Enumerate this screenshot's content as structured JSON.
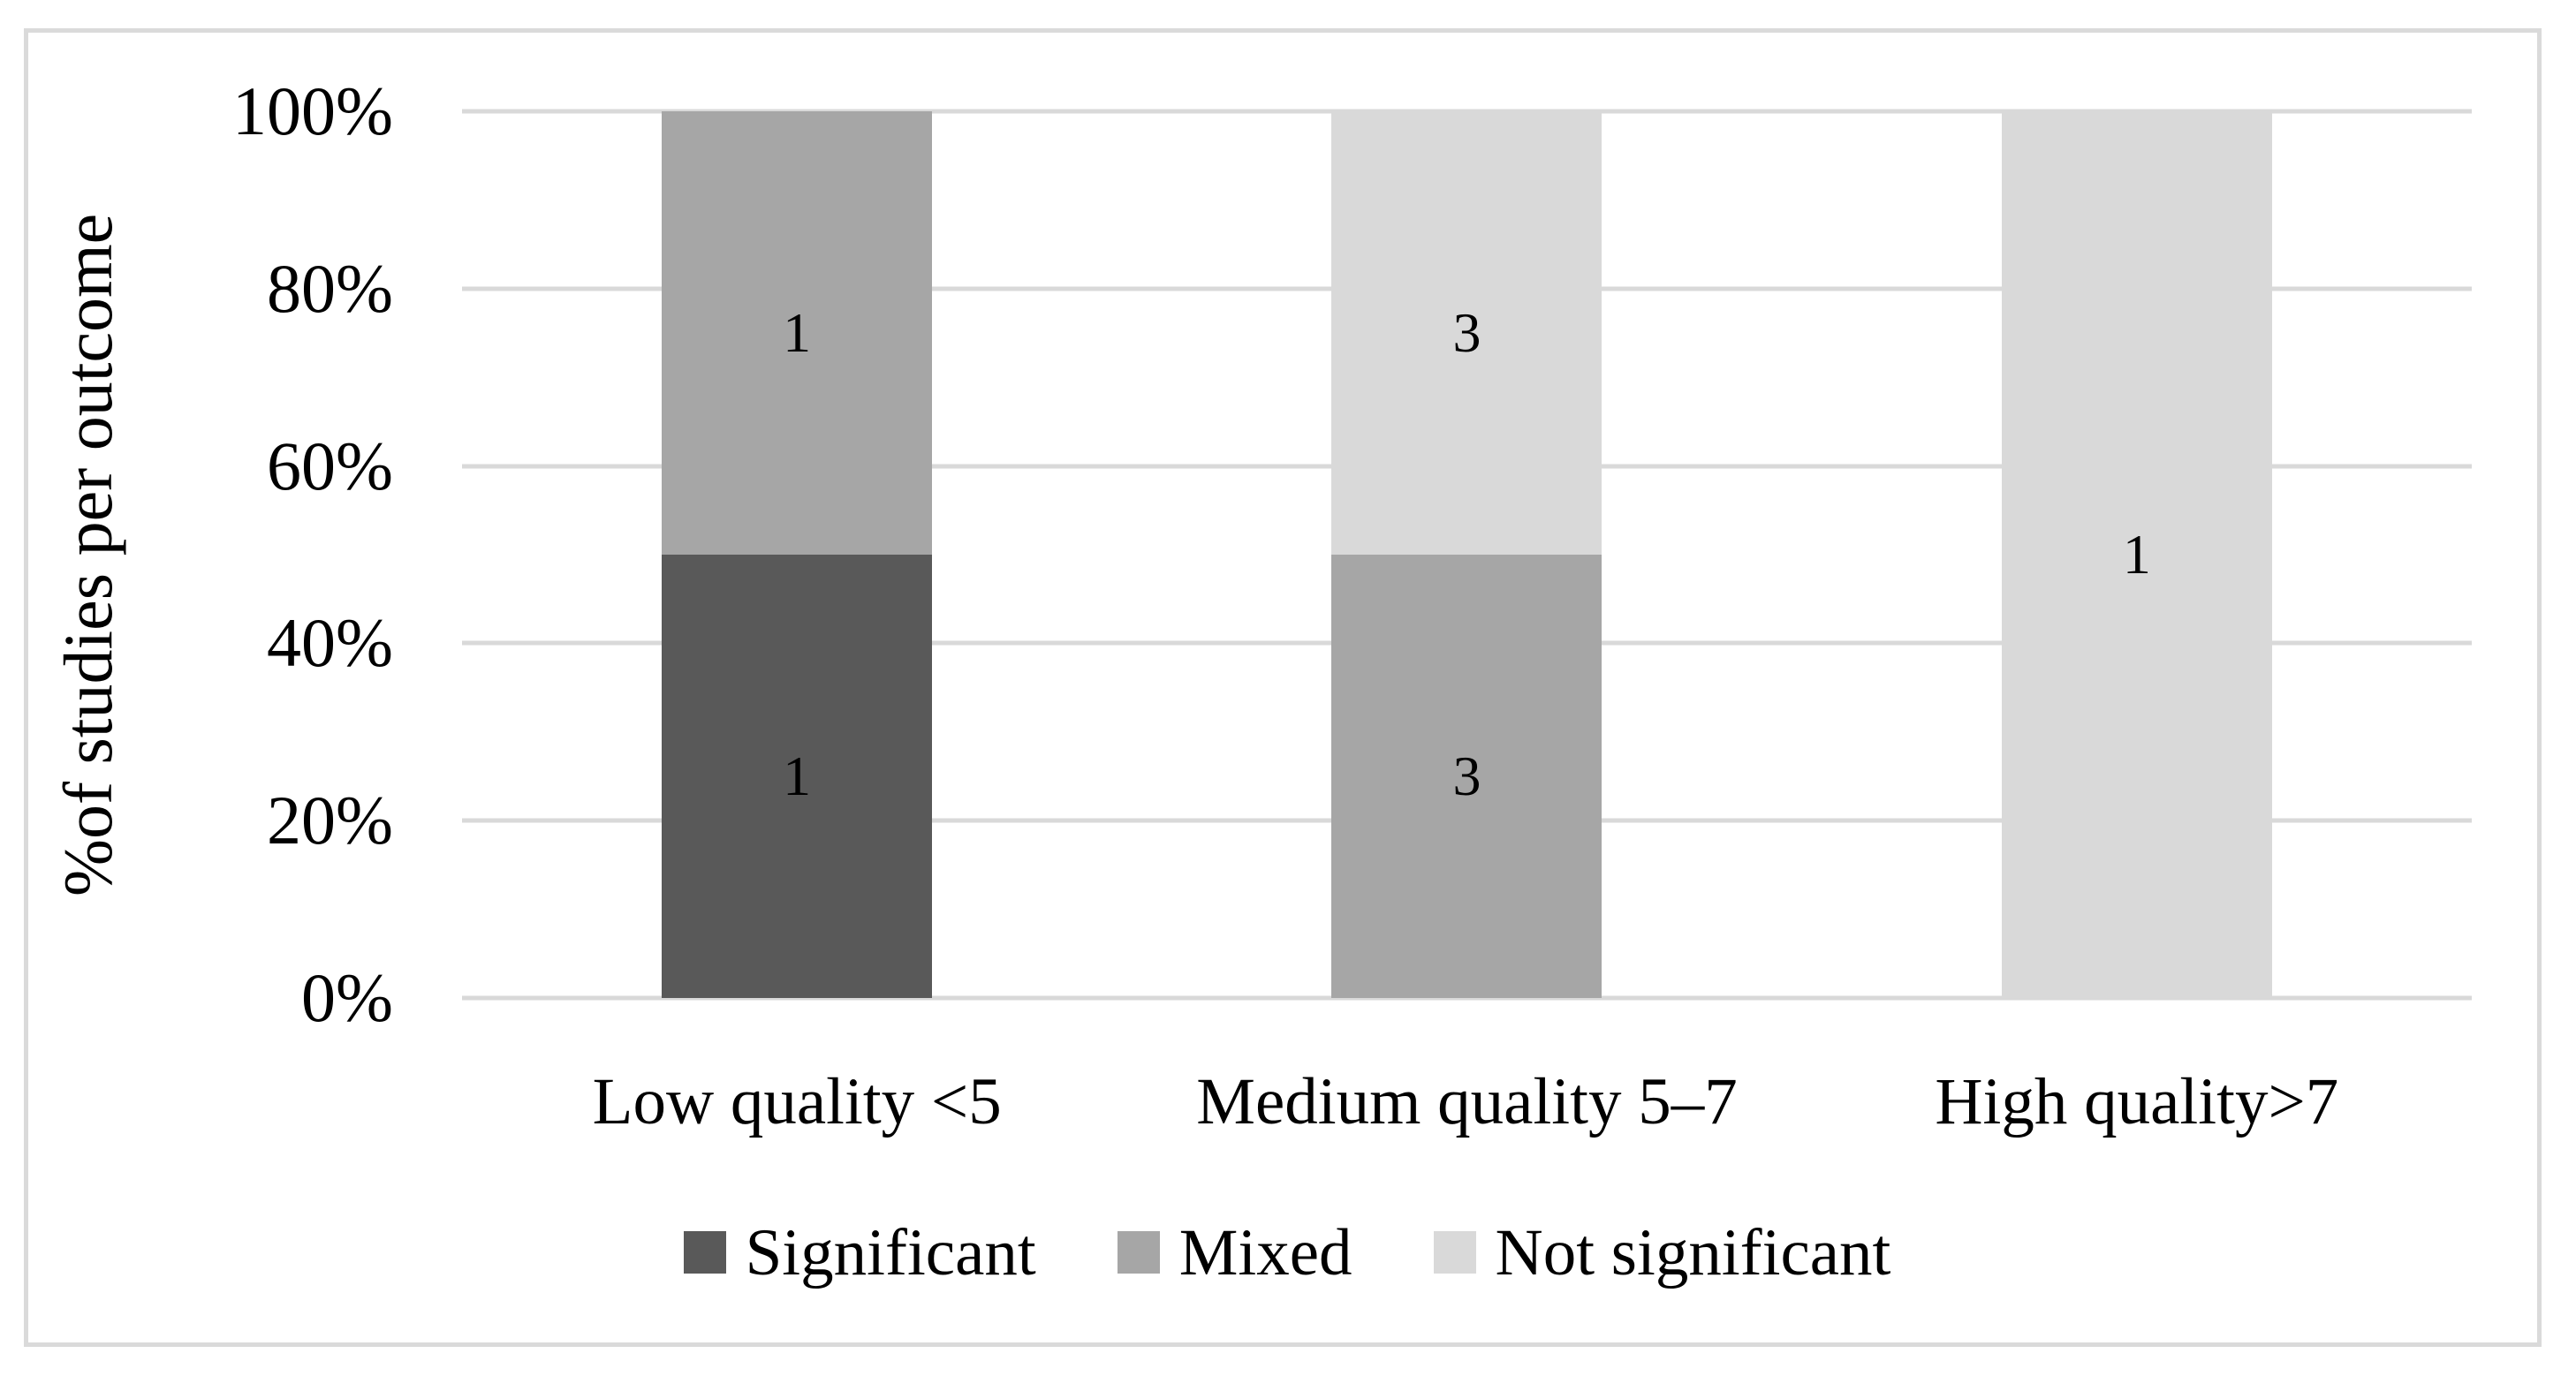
{
  "figure": {
    "background_color": "#ffffff",
    "frame_border_color": "#dadada"
  },
  "chart_data": {
    "type": "bar",
    "subtype": "stacked-100-percent",
    "title": "",
    "xlabel": "",
    "ylabel": "%of studies per outcome",
    "categories": [
      "Low quality <5",
      "Medium quality 5–7",
      "High quality>7"
    ],
    "series": [
      {
        "name": "Significant",
        "color": "#595959",
        "values": [
          1,
          0,
          0
        ]
      },
      {
        "name": "Mixed",
        "color": "#a6a6a6",
        "values": [
          1,
          3,
          0
        ]
      },
      {
        "name": "Not significant",
        "color": "#d9d9d9",
        "values": [
          0,
          3,
          1
        ]
      }
    ],
    "stack_percentages": {
      "Low quality <5": {
        "Significant": 50,
        "Mixed": 50,
        "Not significant": 0
      },
      "Medium quality 5–7": {
        "Significant": 0,
        "Mixed": 50,
        "Not significant": 50
      },
      "High quality>7": {
        "Significant": 0,
        "Mixed": 0,
        "Not significant": 100
      }
    },
    "data_labels_shown": [
      "1",
      "1",
      "3",
      "3",
      "1"
    ],
    "data_label_color": "#000000",
    "y_ticks": [
      "0%",
      "20%",
      "40%",
      "60%",
      "80%",
      "100%"
    ],
    "ylim": [
      0,
      100
    ],
    "grid": true,
    "gridline_color": "#d9d9d9",
    "axis_line_color": "#d9d9d9",
    "legend_position": "bottom"
  }
}
